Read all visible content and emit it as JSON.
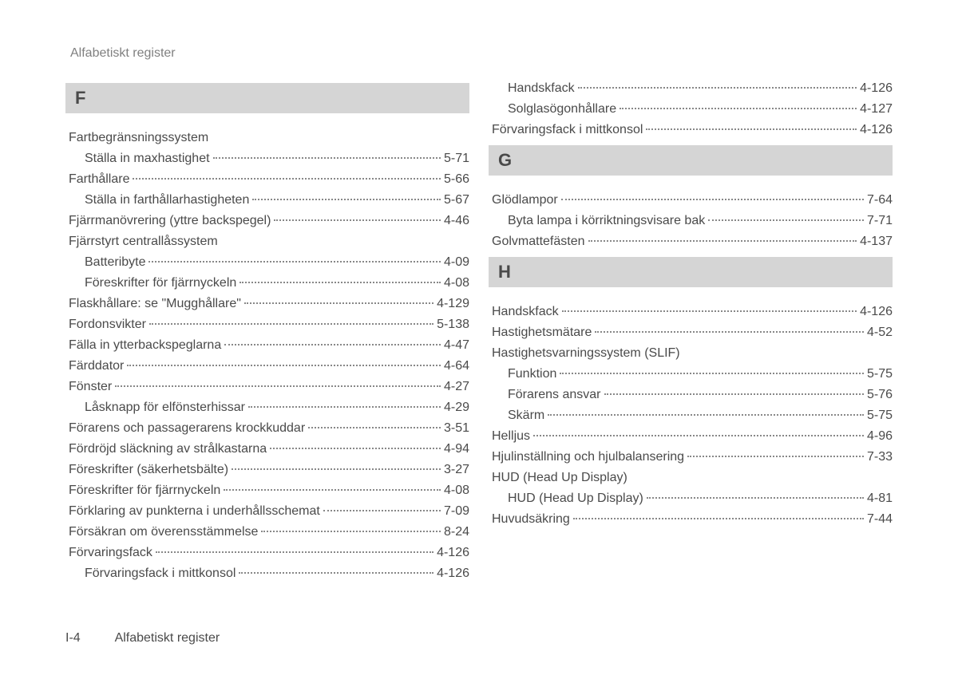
{
  "header": "Alfabetiskt register",
  "footer": {
    "pagenum": "I-4",
    "title": "Alfabetiskt register"
  },
  "colors": {
    "text": "#4a4a4a",
    "header_text": "#808080",
    "section_bg": "#d5d5d5",
    "dot": "#888888",
    "page_bg": "#ffffff"
  },
  "left": [
    {
      "type": "letter",
      "text": "F"
    },
    {
      "type": "group",
      "text": "Fartbegränsningssystem"
    },
    {
      "type": "sub",
      "text": "Ställa in maxhastighet",
      "page": "5-71"
    },
    {
      "type": "entry",
      "text": "Farthållare",
      "page": "5-66"
    },
    {
      "type": "sub",
      "text": "Ställa in farthållarhastigheten",
      "page": "5-67"
    },
    {
      "type": "entry",
      "text": "Fjärrmanövrering (yttre backspegel)",
      "page": "4-46"
    },
    {
      "type": "group",
      "text": "Fjärrstyrt centrallåssystem"
    },
    {
      "type": "sub",
      "text": "Batteribyte",
      "page": "4-09"
    },
    {
      "type": "sub",
      "text": "Föreskrifter för fjärrnyckeln",
      "page": "4-08"
    },
    {
      "type": "entry",
      "text": "Flaskhållare: se \"Mugghållare\"",
      "page": "4-129"
    },
    {
      "type": "entry",
      "text": "Fordonsvikter",
      "page": "5-138"
    },
    {
      "type": "entry",
      "text": "Fälla in ytterbackspeglarna",
      "page": "4-47"
    },
    {
      "type": "entry",
      "text": "Färddator",
      "page": "4-64"
    },
    {
      "type": "entry",
      "text": "Fönster",
      "page": "4-27"
    },
    {
      "type": "sub",
      "text": "Låsknapp för elfönsterhissar",
      "page": "4-29"
    },
    {
      "type": "entry",
      "text": "Förarens och passagerarens krockkuddar",
      "page": "3-51"
    },
    {
      "type": "entry",
      "text": "Fördröjd släckning av strålkastarna",
      "page": "4-94"
    },
    {
      "type": "entry",
      "text": "Föreskrifter (säkerhetsbälte)",
      "page": "3-27"
    },
    {
      "type": "entry",
      "text": "Föreskrifter för fjärrnyckeln",
      "page": "4-08"
    },
    {
      "type": "entry",
      "text": "Förklaring av punkterna i underhållsschemat",
      "page": "7-09"
    },
    {
      "type": "entry",
      "text": "Försäkran om överensstämmelse",
      "page": "8-24"
    },
    {
      "type": "entry",
      "text": "Förvaringsfack",
      "page": "4-126"
    },
    {
      "type": "sub",
      "text": "Förvaringsfack i mittkonsol",
      "page": "4-126"
    }
  ],
  "right": [
    {
      "type": "sub",
      "text": "Handskfack",
      "page": "4-126"
    },
    {
      "type": "sub",
      "text": "Solglasögonhållare",
      "page": "4-127"
    },
    {
      "type": "entry",
      "text": "Förvaringsfack i mittkonsol",
      "page": "4-126"
    },
    {
      "type": "letter",
      "text": "G"
    },
    {
      "type": "entry",
      "text": "Glödlampor",
      "page": "7-64"
    },
    {
      "type": "sub",
      "text": "Byta lampa i körriktningsvisare bak",
      "page": "7-71"
    },
    {
      "type": "entry",
      "text": "Golvmattefästen",
      "page": "4-137"
    },
    {
      "type": "letter",
      "text": "H"
    },
    {
      "type": "entry",
      "text": "Handskfack",
      "page": "4-126"
    },
    {
      "type": "entry",
      "text": "Hastighetsmätare",
      "page": "4-52"
    },
    {
      "type": "group",
      "text": "Hastighetsvarningssystem (SLIF)"
    },
    {
      "type": "sub",
      "text": "Funktion",
      "page": "5-75"
    },
    {
      "type": "sub",
      "text": "Förarens ansvar",
      "page": "5-76"
    },
    {
      "type": "sub",
      "text": "Skärm",
      "page": "5-75"
    },
    {
      "type": "entry",
      "text": "Helljus",
      "page": "4-96"
    },
    {
      "type": "entry",
      "text": "Hjulinställning och hjulbalansering",
      "page": "7-33"
    },
    {
      "type": "group",
      "text": "HUD (Head Up Display)"
    },
    {
      "type": "sub",
      "text": "HUD (Head Up Display)",
      "page": "4-81"
    },
    {
      "type": "entry",
      "text": "Huvudsäkring",
      "page": "7-44"
    }
  ]
}
